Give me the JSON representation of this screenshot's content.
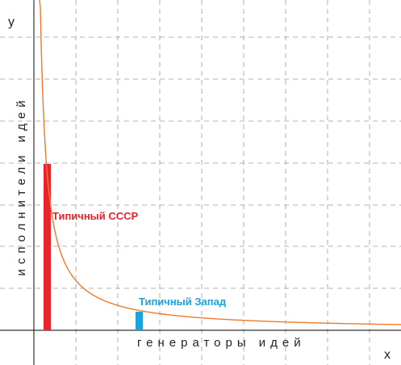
{
  "axes": {
    "x_letter": "x",
    "y_letter": "y",
    "x_title": "генераторы идей",
    "y_title": "исполнители идей"
  },
  "markers": {
    "ussr": {
      "label": "Типичный СССР",
      "color": "#e8232b"
    },
    "west": {
      "label": "Типичный Запад",
      "color": "#1ca3dc"
    }
  },
  "colors": {
    "curve": "#f07a2c",
    "grid": "#9a9a9a",
    "axis": "#333333"
  }
}
